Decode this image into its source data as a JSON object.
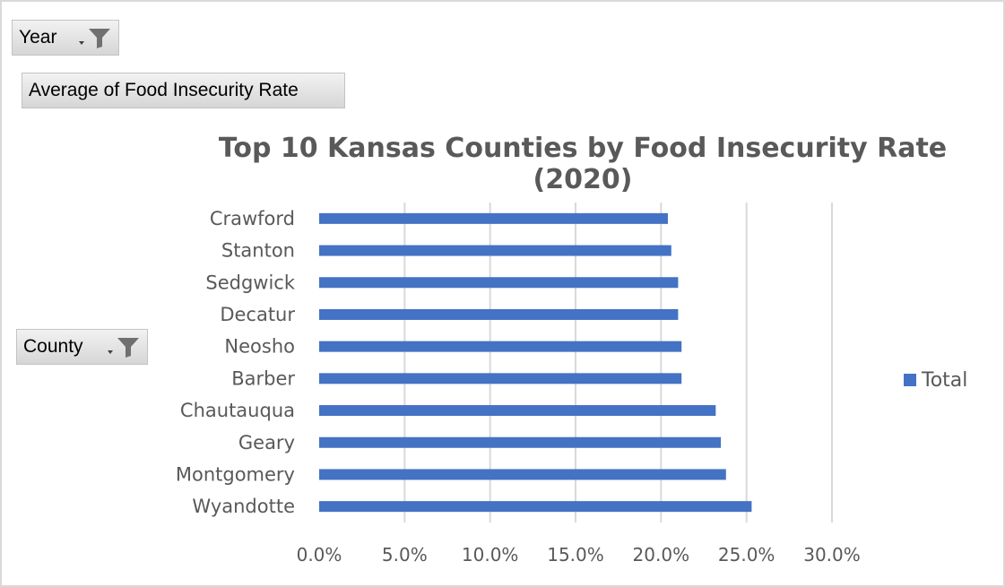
{
  "filters": {
    "year_label": "Year",
    "values_label": "Average of Food Insecurity Rate",
    "county_label": "County"
  },
  "colors": {
    "bar": "#4472c4",
    "grid": "#d9d9d9",
    "text": "#595959"
  },
  "chart_data": {
    "type": "bar",
    "orientation": "horizontal",
    "title": "Top 10 Kansas Counties by Food Insecurity Rate (2020)",
    "categories": [
      "Wyandotte",
      "Montgomery",
      "Geary",
      "Chautauqua",
      "Barber",
      "Neosho",
      "Decatur",
      "Sedgwick",
      "Stanton",
      "Crawford"
    ],
    "series": [
      {
        "name": "Total",
        "values": [
          0.253,
          0.238,
          0.235,
          0.232,
          0.212,
          0.212,
          0.21,
          0.21,
          0.206,
          0.204
        ]
      }
    ],
    "xlim": [
      0,
      0.3
    ],
    "xticks": [
      "0.0%",
      "5.0%",
      "10.0%",
      "15.0%",
      "20.0%",
      "25.0%",
      "30.0%"
    ],
    "grid": true,
    "legend": "right"
  }
}
